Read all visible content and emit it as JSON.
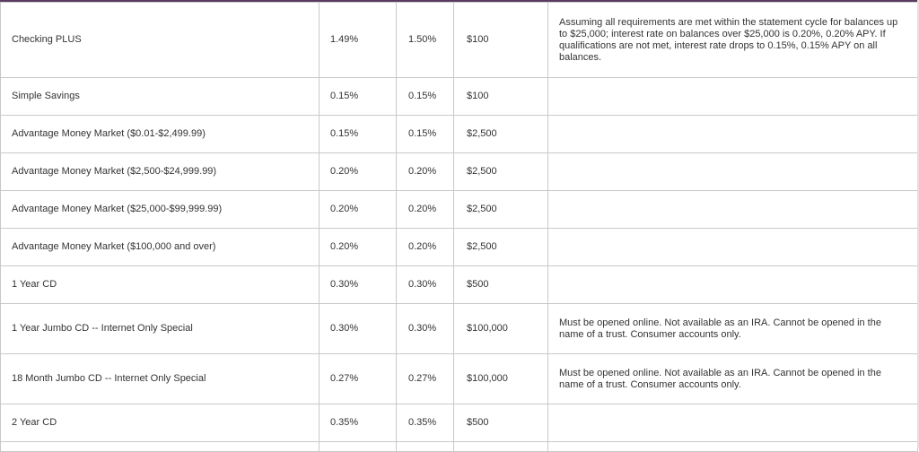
{
  "rows": [
    {
      "product": "Checking PLUS",
      "rate": "1.49%",
      "apy": "1.50%",
      "min": "$100",
      "note": "Assuming all requirements are met within the statement cycle for balances up to $25,000; interest rate on balances over $25,000 is 0.20%, 0.20% APY. If qualifications are not met, interest rate drops to 0.15%, 0.15% APY on all balances."
    },
    {
      "product": "Simple Savings",
      "rate": "0.15%",
      "apy": "0.15%",
      "min": "$100",
      "note": ""
    },
    {
      "product": "Advantage Money Market ($0.01-$2,499.99)",
      "rate": "0.15%",
      "apy": "0.15%",
      "min": "$2,500",
      "note": ""
    },
    {
      "product": "Advantage Money Market ($2,500-$24,999.99)",
      "rate": "0.20%",
      "apy": "0.20%",
      "min": "$2,500",
      "note": ""
    },
    {
      "product": "Advantage Money Market ($25,000-$99,999.99)",
      "rate": "0.20%",
      "apy": "0.20%",
      "min": "$2,500",
      "note": ""
    },
    {
      "product": "Advantage Money Market ($100,000 and over)",
      "rate": "0.20%",
      "apy": "0.20%",
      "min": "$2,500",
      "note": ""
    },
    {
      "product": "1 Year CD",
      "rate": "0.30%",
      "apy": "0.30%",
      "min": "$500",
      "note": ""
    },
    {
      "product": "1 Year Jumbo CD -- Internet Only Special",
      "rate": "0.30%",
      "apy": "0.30%",
      "min": "$100,000",
      "note": "Must be opened online. Not available as an IRA. Cannot be opened in the name of a trust. Consumer accounts only."
    },
    {
      "product": "18 Month Jumbo CD -- Internet Only Special",
      "rate": "0.27%",
      "apy": "0.27%",
      "min": "$100,000",
      "note": "Must be opened online. Not available as an IRA. Cannot be opened in the name of a trust. Consumer accounts only."
    },
    {
      "product": "2 Year CD",
      "rate": "0.35%",
      "apy": "0.35%",
      "min": "$500",
      "note": ""
    }
  ],
  "colors": {
    "accent": "#5b3a62",
    "border": "#c8c8c8",
    "text": "#333333"
  }
}
